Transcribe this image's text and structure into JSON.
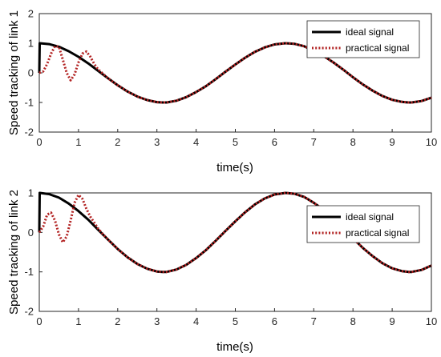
{
  "chart_data": [
    {
      "type": "line",
      "xlabel": "time(s)",
      "ylabel": "Speed tracking of link 1",
      "xlim": [
        0,
        10
      ],
      "ylim": [
        -2,
        2
      ],
      "xticks": [
        "0",
        "1",
        "2",
        "3",
        "4",
        "5",
        "6",
        "7",
        "8",
        "9",
        "10"
      ],
      "yticks": [
        "-2",
        "-1",
        "0",
        "1",
        "2"
      ],
      "grid": false,
      "legend_position": "top-right",
      "series": [
        {
          "name": "ideal signal",
          "color": "#000000",
          "style": "solid",
          "points": [
            [
              0,
              0
            ],
            [
              0.01,
              1.0
            ],
            [
              0.25,
              0.97
            ],
            [
              0.5,
              0.88
            ],
            [
              0.75,
              0.73
            ],
            [
              1.0,
              0.54
            ],
            [
              1.25,
              0.32
            ],
            [
              1.5,
              0.07
            ],
            [
              1.75,
              -0.18
            ],
            [
              2.0,
              -0.42
            ],
            [
              2.25,
              -0.63
            ],
            [
              2.5,
              -0.8
            ],
            [
              2.75,
              -0.92
            ],
            [
              3.0,
              -0.99
            ],
            [
              3.14,
              -1.0
            ],
            [
              3.25,
              -1.0
            ],
            [
              3.5,
              -0.94
            ],
            [
              3.75,
              -0.82
            ],
            [
              4.0,
              -0.65
            ],
            [
              4.25,
              -0.45
            ],
            [
              4.5,
              -0.21
            ],
            [
              4.75,
              0.04
            ],
            [
              5.0,
              0.28
            ],
            [
              5.25,
              0.51
            ],
            [
              5.5,
              0.71
            ],
            [
              5.75,
              0.86
            ],
            [
              6.0,
              0.96
            ],
            [
              6.28,
              1.0
            ],
            [
              6.5,
              0.98
            ],
            [
              6.75,
              0.9
            ],
            [
              7.0,
              0.75
            ],
            [
              7.25,
              0.57
            ],
            [
              7.5,
              0.35
            ],
            [
              7.75,
              0.11
            ],
            [
              8.0,
              -0.15
            ],
            [
              8.25,
              -0.39
            ],
            [
              8.5,
              -0.6
            ],
            [
              8.75,
              -0.78
            ],
            [
              9.0,
              -0.91
            ],
            [
              9.25,
              -0.98
            ],
            [
              9.42,
              -1.0
            ],
            [
              9.5,
              -1.0
            ],
            [
              9.75,
              -0.95
            ],
            [
              10.0,
              -0.84
            ]
          ]
        },
        {
          "name": "practical signal",
          "color": "#b22222",
          "style": "dotted",
          "points": [
            [
              0,
              0
            ],
            [
              0.1,
              0.05
            ],
            [
              0.2,
              0.3
            ],
            [
              0.3,
              0.65
            ],
            [
              0.4,
              0.9
            ],
            [
              0.5,
              0.88
            ],
            [
              0.6,
              0.45
            ],
            [
              0.7,
              0.0
            ],
            [
              0.8,
              -0.25
            ],
            [
              0.9,
              -0.05
            ],
            [
              1.0,
              0.35
            ],
            [
              1.1,
              0.65
            ],
            [
              1.2,
              0.72
            ],
            [
              1.3,
              0.55
            ],
            [
              1.4,
              0.3
            ],
            [
              1.5,
              0.12
            ],
            [
              1.6,
              0.0
            ],
            [
              1.75,
              -0.18
            ],
            [
              2.0,
              -0.42
            ],
            [
              2.25,
              -0.63
            ],
            [
              2.5,
              -0.8
            ],
            [
              2.75,
              -0.92
            ],
            [
              3.0,
              -0.99
            ],
            [
              3.14,
              -1.0
            ],
            [
              3.25,
              -1.0
            ],
            [
              3.5,
              -0.94
            ],
            [
              3.75,
              -0.82
            ],
            [
              4.0,
              -0.65
            ],
            [
              4.25,
              -0.45
            ],
            [
              4.5,
              -0.21
            ],
            [
              4.75,
              0.04
            ],
            [
              5.0,
              0.28
            ],
            [
              5.25,
              0.51
            ],
            [
              5.5,
              0.71
            ],
            [
              5.75,
              0.86
            ],
            [
              6.0,
              0.96
            ],
            [
              6.28,
              1.0
            ],
            [
              6.5,
              0.98
            ],
            [
              6.75,
              0.9
            ],
            [
              7.0,
              0.75
            ],
            [
              7.25,
              0.57
            ],
            [
              7.5,
              0.35
            ],
            [
              7.75,
              0.11
            ],
            [
              8.0,
              -0.15
            ],
            [
              8.25,
              -0.39
            ],
            [
              8.5,
              -0.6
            ],
            [
              8.75,
              -0.78
            ],
            [
              9.0,
              -0.91
            ],
            [
              9.25,
              -0.98
            ],
            [
              9.42,
              -1.0
            ],
            [
              9.5,
              -1.0
            ],
            [
              9.75,
              -0.95
            ],
            [
              10.0,
              -0.84
            ]
          ]
        }
      ]
    },
    {
      "type": "line",
      "xlabel": "time(s)",
      "ylabel": "Speed tracking of link 2",
      "xlim": [
        0,
        10
      ],
      "ylim": [
        -2,
        1
      ],
      "xticks": [
        "0",
        "1",
        "2",
        "3",
        "4",
        "5",
        "6",
        "7",
        "8",
        "9",
        "10"
      ],
      "yticks": [
        "-2",
        "-1",
        "0",
        "1"
      ],
      "grid": false,
      "legend_position": "top-right",
      "series": [
        {
          "name": "ideal signal",
          "color": "#000000",
          "style": "solid",
          "points": [
            [
              0,
              0
            ],
            [
              0.01,
              1.0
            ],
            [
              0.25,
              0.97
            ],
            [
              0.5,
              0.88
            ],
            [
              0.75,
              0.73
            ],
            [
              1.0,
              0.54
            ],
            [
              1.25,
              0.32
            ],
            [
              1.5,
              0.07
            ],
            [
              1.75,
              -0.18
            ],
            [
              2.0,
              -0.42
            ],
            [
              2.25,
              -0.63
            ],
            [
              2.5,
              -0.8
            ],
            [
              2.75,
              -0.92
            ],
            [
              3.0,
              -0.99
            ],
            [
              3.14,
              -1.0
            ],
            [
              3.25,
              -1.0
            ],
            [
              3.5,
              -0.94
            ],
            [
              3.75,
              -0.82
            ],
            [
              4.0,
              -0.65
            ],
            [
              4.25,
              -0.45
            ],
            [
              4.5,
              -0.21
            ],
            [
              4.75,
              0.04
            ],
            [
              5.0,
              0.28
            ],
            [
              5.25,
              0.51
            ],
            [
              5.5,
              0.71
            ],
            [
              5.75,
              0.86
            ],
            [
              6.0,
              0.96
            ],
            [
              6.28,
              1.0
            ],
            [
              6.5,
              0.98
            ],
            [
              6.75,
              0.9
            ],
            [
              7.0,
              0.75
            ],
            [
              7.25,
              0.57
            ],
            [
              7.5,
              0.35
            ],
            [
              7.75,
              0.11
            ],
            [
              8.0,
              -0.15
            ],
            [
              8.25,
              -0.39
            ],
            [
              8.5,
              -0.6
            ],
            [
              8.75,
              -0.78
            ],
            [
              9.0,
              -0.91
            ],
            [
              9.25,
              -0.98
            ],
            [
              9.42,
              -1.0
            ],
            [
              9.5,
              -1.0
            ],
            [
              9.75,
              -0.95
            ],
            [
              10.0,
              -0.84
            ]
          ]
        },
        {
          "name": "practical signal",
          "color": "#b22222",
          "style": "dotted",
          "points": [
            [
              0,
              0
            ],
            [
              0.1,
              0.15
            ],
            [
              0.2,
              0.45
            ],
            [
              0.3,
              0.5
            ],
            [
              0.4,
              0.3
            ],
            [
              0.5,
              -0.05
            ],
            [
              0.6,
              -0.25
            ],
            [
              0.7,
              -0.1
            ],
            [
              0.8,
              0.3
            ],
            [
              0.9,
              0.75
            ],
            [
              1.0,
              0.95
            ],
            [
              1.1,
              0.85
            ],
            [
              1.2,
              0.6
            ],
            [
              1.3,
              0.4
            ],
            [
              1.4,
              0.25
            ],
            [
              1.5,
              0.1
            ],
            [
              1.6,
              -0.02
            ],
            [
              1.75,
              -0.18
            ],
            [
              2.0,
              -0.42
            ],
            [
              2.25,
              -0.63
            ],
            [
              2.5,
              -0.8
            ],
            [
              2.75,
              -0.92
            ],
            [
              3.0,
              -0.99
            ],
            [
              3.14,
              -1.0
            ],
            [
              3.25,
              -1.0
            ],
            [
              3.5,
              -0.94
            ],
            [
              3.75,
              -0.82
            ],
            [
              4.0,
              -0.65
            ],
            [
              4.25,
              -0.45
            ],
            [
              4.5,
              -0.21
            ],
            [
              4.75,
              0.04
            ],
            [
              5.0,
              0.28
            ],
            [
              5.25,
              0.51
            ],
            [
              5.5,
              0.71
            ],
            [
              5.75,
              0.86
            ],
            [
              6.0,
              0.96
            ],
            [
              6.28,
              1.0
            ],
            [
              6.5,
              0.98
            ],
            [
              6.75,
              0.9
            ],
            [
              7.0,
              0.75
            ],
            [
              7.25,
              0.57
            ],
            [
              7.5,
              0.35
            ],
            [
              7.75,
              0.11
            ],
            [
              8.0,
              -0.15
            ],
            [
              8.25,
              -0.39
            ],
            [
              8.5,
              -0.6
            ],
            [
              8.75,
              -0.78
            ],
            [
              9.0,
              -0.91
            ],
            [
              9.25,
              -0.98
            ],
            [
              9.42,
              -1.0
            ],
            [
              9.5,
              -1.0
            ],
            [
              9.75,
              -0.95
            ],
            [
              10.0,
              -0.84
            ]
          ]
        }
      ]
    }
  ]
}
